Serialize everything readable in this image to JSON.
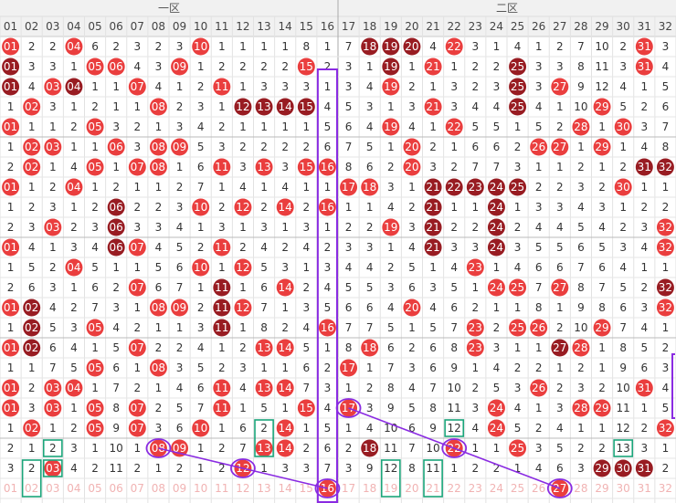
{
  "header": {
    "zones": [
      "一区",
      "二区"
    ],
    "columns": [
      "01",
      "02",
      "03",
      "04",
      "05",
      "06",
      "07",
      "08",
      "09",
      "10",
      "11",
      "12",
      "13",
      "14",
      "15",
      "16",
      "17",
      "18",
      "19",
      "20",
      "21",
      "22",
      "23",
      "24",
      "25",
      "26",
      "27",
      "28",
      "29",
      "30",
      "31",
      "32"
    ]
  },
  "rows": [
    {
      "cells": [
        "01",
        "2",
        "2",
        "04",
        "6",
        "2",
        "3",
        "2",
        "3",
        "10",
        "1",
        "1",
        "1",
        "1",
        "8",
        "1",
        "7",
        "18",
        "19",
        "20",
        "4",
        "22",
        "3",
        "1",
        "4",
        "1",
        "2",
        "7",
        "10",
        "2",
        "31",
        "3"
      ],
      "dark": [
        "18",
        "19",
        "20"
      ]
    },
    {
      "cells": [
        "01",
        "3",
        "3",
        "1",
        "05",
        "06",
        "4",
        "3",
        "09",
        "1",
        "2",
        "2",
        "2",
        "2",
        "15",
        "2",
        "3",
        "1",
        "19",
        "1",
        "21",
        "1",
        "2",
        "2",
        "25",
        "3",
        "3",
        "8",
        "11",
        "3",
        "31",
        "4"
      ],
      "dark": [
        "01",
        "19",
        "25"
      ]
    },
    {
      "cells": [
        "01",
        "4",
        "03",
        "04",
        "1",
        "1",
        "07",
        "4",
        "1",
        "2",
        "11",
        "1",
        "3",
        "3",
        "3",
        "1",
        "3",
        "4",
        "19",
        "2",
        "1",
        "3",
        "2",
        "3",
        "25",
        "3",
        "27",
        "9",
        "12",
        "4",
        "1",
        "5"
      ],
      "dark": [
        "01",
        "04",
        "25"
      ]
    },
    {
      "cells": [
        "1",
        "02",
        "3",
        "1",
        "2",
        "1",
        "1",
        "08",
        "2",
        "3",
        "1",
        "12",
        "13",
        "14",
        "15",
        "4",
        "5",
        "3",
        "1",
        "3",
        "21",
        "3",
        "4",
        "4",
        "25",
        "4",
        "1",
        "10",
        "29",
        "5",
        "2",
        "6"
      ],
      "dark": [
        "12",
        "13",
        "14",
        "15",
        "25"
      ]
    },
    {
      "cells": [
        "01",
        "1",
        "1",
        "2",
        "05",
        "3",
        "2",
        "1",
        "3",
        "4",
        "2",
        "1",
        "1",
        "1",
        "1",
        "5",
        "6",
        "4",
        "19",
        "4",
        "1",
        "22",
        "5",
        "5",
        "1",
        "5",
        "2",
        "28",
        "1",
        "30",
        "3",
        "7"
      ]
    },
    {
      "cells": [
        "1",
        "02",
        "03",
        "1",
        "1",
        "06",
        "3",
        "08",
        "09",
        "5",
        "3",
        "2",
        "2",
        "2",
        "2",
        "6",
        "7",
        "5",
        "1",
        "20",
        "2",
        "1",
        "6",
        "6",
        "2",
        "26",
        "27",
        "1",
        "29",
        "1",
        "4",
        "8"
      ]
    },
    {
      "cells": [
        "2",
        "02",
        "1",
        "4",
        "05",
        "1",
        "07",
        "08",
        "1",
        "6",
        "11",
        "3",
        "13",
        "3",
        "15",
        "16",
        "8",
        "6",
        "2",
        "20",
        "3",
        "2",
        "7",
        "7",
        "3",
        "1",
        "1",
        "2",
        "1",
        "2",
        "31",
        "32"
      ],
      "dark": [
        "31",
        "32"
      ]
    },
    {
      "cells": [
        "01",
        "1",
        "2",
        "04",
        "1",
        "2",
        "1",
        "1",
        "2",
        "7",
        "1",
        "4",
        "1",
        "4",
        "1",
        "1",
        "17",
        "18",
        "3",
        "1",
        "21",
        "22",
        "23",
        "24",
        "25",
        "2",
        "2",
        "3",
        "2",
        "30",
        "1",
        "1"
      ],
      "dark": [
        "21",
        "22",
        "23",
        "24",
        "25"
      ]
    },
    {
      "cells": [
        "1",
        "2",
        "3",
        "1",
        "2",
        "06",
        "2",
        "2",
        "3",
        "10",
        "2",
        "12",
        "2",
        "14",
        "2",
        "16",
        "1",
        "1",
        "4",
        "2",
        "21",
        "1",
        "1",
        "24",
        "1",
        "3",
        "3",
        "4",
        "3",
        "1",
        "2",
        "2"
      ],
      "dark": [
        "06",
        "21",
        "24"
      ]
    },
    {
      "cells": [
        "2",
        "3",
        "03",
        "2",
        "3",
        "06",
        "3",
        "3",
        "4",
        "1",
        "3",
        "1",
        "3",
        "1",
        "3",
        "1",
        "2",
        "2",
        "19",
        "3",
        "21",
        "2",
        "2",
        "24",
        "2",
        "4",
        "4",
        "5",
        "4",
        "2",
        "3",
        "32"
      ],
      "dark": [
        "06",
        "21",
        "24"
      ]
    },
    {
      "cells": [
        "01",
        "4",
        "1",
        "3",
        "4",
        "06",
        "07",
        "4",
        "5",
        "2",
        "11",
        "2",
        "4",
        "2",
        "4",
        "2",
        "3",
        "3",
        "1",
        "4",
        "21",
        "3",
        "3",
        "24",
        "3",
        "5",
        "5",
        "6",
        "5",
        "3",
        "4",
        "32"
      ],
      "dark": [
        "06",
        "21",
        "24"
      ]
    },
    {
      "cells": [
        "1",
        "5",
        "2",
        "04",
        "5",
        "1",
        "1",
        "5",
        "6",
        "10",
        "1",
        "12",
        "5",
        "3",
        "1",
        "3",
        "4",
        "4",
        "2",
        "5",
        "1",
        "4",
        "23",
        "1",
        "4",
        "6",
        "6",
        "7",
        "6",
        "4",
        "1",
        "1"
      ]
    },
    {
      "cells": [
        "2",
        "6",
        "3",
        "1",
        "6",
        "2",
        "07",
        "6",
        "7",
        "1",
        "11",
        "1",
        "6",
        "14",
        "2",
        "4",
        "5",
        "5",
        "3",
        "6",
        "3",
        "5",
        "1",
        "24",
        "25",
        "7",
        "27",
        "8",
        "7",
        "5",
        "2",
        "32"
      ],
      "dark": [
        "11",
        "32"
      ]
    },
    {
      "cells": [
        "01",
        "02",
        "4",
        "2",
        "7",
        "3",
        "1",
        "08",
        "09",
        "2",
        "11",
        "12",
        "7",
        "1",
        "3",
        "5",
        "6",
        "6",
        "4",
        "20",
        "4",
        "6",
        "2",
        "1",
        "1",
        "8",
        "1",
        "9",
        "8",
        "6",
        "3",
        "32"
      ],
      "dark": [
        "02",
        "11"
      ]
    },
    {
      "cells": [
        "1",
        "02",
        "5",
        "3",
        "05",
        "4",
        "2",
        "1",
        "1",
        "3",
        "11",
        "1",
        "8",
        "2",
        "4",
        "16",
        "7",
        "7",
        "5",
        "1",
        "5",
        "7",
        "23",
        "2",
        "25",
        "26",
        "2",
        "10",
        "29",
        "7",
        "4",
        "1"
      ],
      "dark": [
        "02",
        "11"
      ]
    },
    {
      "cells": [
        "01",
        "02",
        "6",
        "4",
        "1",
        "5",
        "07",
        "2",
        "2",
        "4",
        "1",
        "2",
        "13",
        "14",
        "5",
        "1",
        "8",
        "18",
        "6",
        "2",
        "6",
        "8",
        "23",
        "3",
        "1",
        "1",
        "27",
        "28",
        "1",
        "8",
        "5",
        "2"
      ],
      "dark": [
        "02",
        "27"
      ]
    },
    {
      "cells": [
        "1",
        "1",
        "7",
        "5",
        "05",
        "6",
        "1",
        "08",
        "3",
        "5",
        "2",
        "3",
        "1",
        "1",
        "6",
        "2",
        "17",
        "1",
        "7",
        "3",
        "6",
        "9",
        "1",
        "4",
        "2",
        "2",
        "1",
        "2",
        "1",
        "9",
        "6",
        "3"
      ]
    },
    {
      "cells": [
        "01",
        "2",
        "03",
        "04",
        "1",
        "7",
        "2",
        "1",
        "4",
        "6",
        "11",
        "4",
        "13",
        "14",
        "7",
        "3",
        "1",
        "2",
        "8",
        "4",
        "7",
        "10",
        "2",
        "5",
        "3",
        "26",
        "2",
        "3",
        "2",
        "10",
        "31",
        "4"
      ]
    },
    {
      "cells": [
        "01",
        "3",
        "03",
        "1",
        "05",
        "8",
        "07",
        "2",
        "5",
        "7",
        "11",
        "1",
        "5",
        "1",
        "15",
        "4",
        "17",
        "3",
        "9",
        "5",
        "8",
        "11",
        "3",
        "24",
        "4",
        "1",
        "3",
        "28",
        "29",
        "11",
        "1",
        "5"
      ]
    },
    {
      "cells": [
        "1",
        "02",
        "1",
        "2",
        "05",
        "9",
        "07",
        "3",
        "6",
        "10",
        "1",
        "6",
        "2",
        "14",
        "1",
        "5",
        "1",
        "4",
        "10",
        "6",
        "9",
        "12",
        "4",
        "24",
        "5",
        "2",
        "4",
        "1",
        "1",
        "12",
        "2",
        "32"
      ]
    },
    {
      "cells": [
        "2",
        "1",
        "2",
        "3",
        "1",
        "10",
        "1",
        "08",
        "09",
        "1",
        "2",
        "7",
        "13",
        "14",
        "2",
        "6",
        "2",
        "18",
        "11",
        "7",
        "10",
        "22",
        "1",
        "1",
        "25",
        "3",
        "5",
        "2",
        "2",
        "13",
        "3",
        "1"
      ],
      "dark": [
        "18"
      ]
    },
    {
      "cells": [
        "3",
        "2",
        "03",
        "4",
        "2",
        "11",
        "2",
        "1",
        "2",
        "1",
        "2",
        "12",
        "1",
        "3",
        "3",
        "7",
        "3",
        "9",
        "12",
        "8",
        "11",
        "1",
        "2",
        "2",
        "1",
        "4",
        "6",
        "3",
        "29",
        "30",
        "31",
        "2"
      ],
      "dark": [
        "29",
        "30",
        "31"
      ]
    }
  ],
  "footer": {
    "cells": [
      "01",
      "02",
      "03",
      "04",
      "05",
      "06",
      "07",
      "08",
      "09",
      "10",
      "11",
      "12",
      "13",
      "14",
      "15",
      "16",
      "17",
      "18",
      "19",
      "20",
      "21",
      "22",
      "23",
      "24",
      "25",
      "26",
      "27",
      "28",
      "29",
      "30",
      "31",
      "32"
    ],
    "circled": [
      "16",
      "27"
    ]
  }
}
